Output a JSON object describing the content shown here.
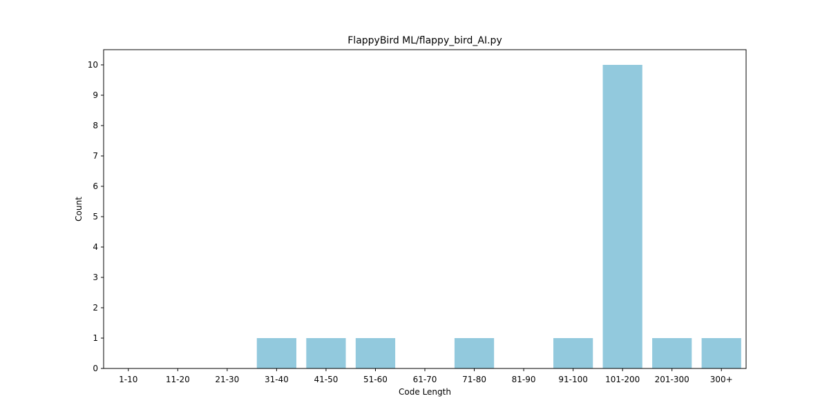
{
  "chart_data": {
    "type": "bar",
    "title": "FlappyBird ML/flappy_bird_AI.py",
    "xlabel": "Code Length",
    "ylabel": "Count",
    "categories": [
      "1-10",
      "11-20",
      "21-30",
      "31-40",
      "41-50",
      "51-60",
      "61-70",
      "71-80",
      "81-90",
      "91-100",
      "101-200",
      "201-300",
      "300+"
    ],
    "values": [
      0,
      0,
      0,
      1,
      1,
      1,
      0,
      1,
      0,
      1,
      10,
      1,
      1
    ],
    "ylim": [
      0,
      10.5
    ],
    "yticks": [
      0,
      1,
      2,
      3,
      4,
      5,
      6,
      7,
      8,
      9,
      10
    ],
    "grid": false,
    "bar_color": "#92c9dd"
  }
}
